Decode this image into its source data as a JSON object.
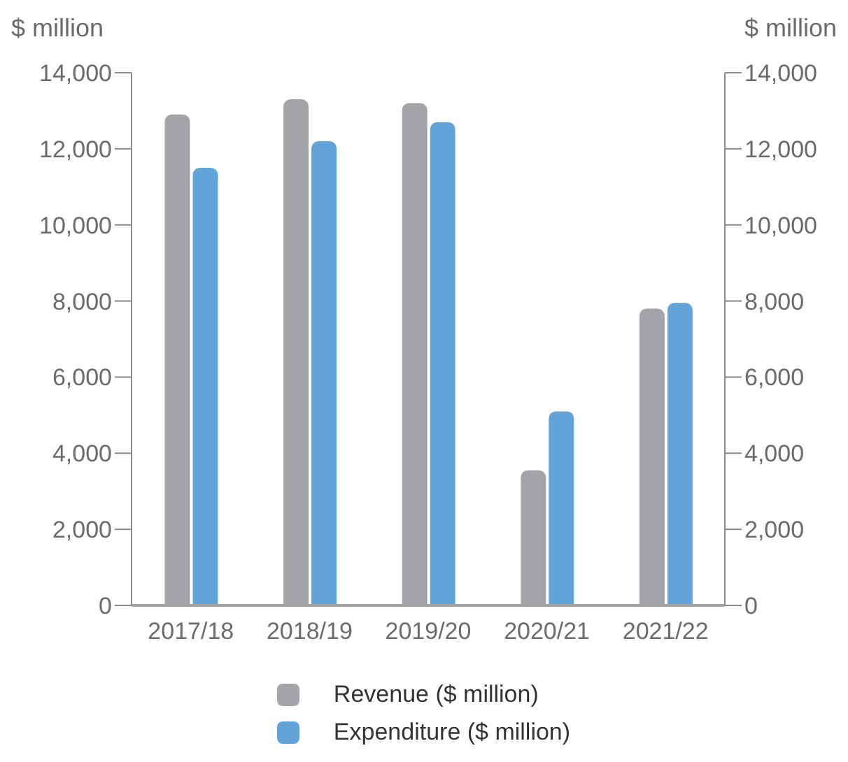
{
  "chart_data": {
    "type": "bar",
    "ylabel": "$ million",
    "y2label": "$ million",
    "categories": [
      "2017/18",
      "2018/19",
      "2019/20",
      "2020/21",
      "2021/22"
    ],
    "series": [
      {
        "name": "Revenue ($ million)",
        "color": "#a3a4a8",
        "values": [
          12900,
          13300,
          13200,
          3550,
          7800
        ]
      },
      {
        "name": "Expenditure ($ million)",
        "color": "#62a4d9",
        "values": [
          11500,
          12200,
          12700,
          5100,
          7950
        ]
      }
    ],
    "ylim": [
      0,
      14000
    ],
    "yticks": [
      0,
      {
        "value": 2000,
        "label": "2,000"
      },
      {
        "value": 4000,
        "label": "4,000"
      },
      {
        "value": 6000,
        "label": "6,000"
      },
      {
        "value": 8000,
        "label": "8,000"
      },
      {
        "value": 10000,
        "label": "10,000"
      },
      {
        "value": 12000,
        "label": "12,000"
      },
      {
        "value": 14000,
        "label": "14,000"
      }
    ],
    "y2lim": [
      0,
      14000
    ],
    "y2ticks": [
      0,
      {
        "value": 2000,
        "label": "2,000"
      },
      {
        "value": 4000,
        "label": "4,000"
      },
      {
        "value": 6000,
        "label": "6,000"
      },
      {
        "value": 8000,
        "label": "8,000"
      },
      {
        "value": 10000,
        "label": "10,000"
      },
      {
        "value": 12000,
        "label": "12,000"
      },
      {
        "value": 14000,
        "label": "14,000"
      }
    ],
    "grid": false,
    "legend": "bottom"
  }
}
